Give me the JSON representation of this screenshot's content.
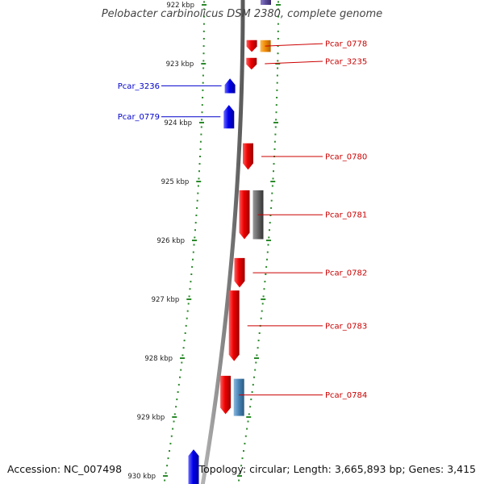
{
  "title": "Pelobacter carbinolicus DSM 2380, complete genome",
  "footer": {
    "accession": "Accession: NC_007498",
    "topology": "Topology: circular; Length: 3,665,893 bp; Genes: 3,415"
  },
  "colors": {
    "forward": "#dd0000",
    "reverse": "#0000ee",
    "orange": "#f08800",
    "gray": "#666666",
    "steelblue": "#4682b4",
    "purple": "#5a4a9a",
    "ticks": "#2a8a2a",
    "backbone": "#808080",
    "label_forward": "#cc0000",
    "label_reverse": "#0000cc"
  },
  "ruler_ticks": [
    {
      "kbp": 922,
      "label": "922 kbp"
    },
    {
      "kbp": 923,
      "label": "923 kbp"
    },
    {
      "kbp": 924,
      "label": "924 kbp"
    },
    {
      "kbp": 925,
      "label": "925 kbp"
    },
    {
      "kbp": 926,
      "label": "926 kbp"
    },
    {
      "kbp": 927,
      "label": "927 kbp"
    },
    {
      "kbp": 928,
      "label": "928 kbp"
    },
    {
      "kbp": 929,
      "label": "929 kbp"
    },
    {
      "kbp": 930,
      "label": "930 kbp"
    }
  ],
  "genes": [
    {
      "name": "Pcar_0778",
      "strand": "+",
      "start_kbp": 922.6,
      "end_kbp": 922.8,
      "color": "forward",
      "labeled": true
    },
    {
      "name": "Pcar_3235",
      "strand": "+",
      "start_kbp": 922.9,
      "end_kbp": 923.1,
      "color": "forward",
      "labeled": true
    },
    {
      "name": "Pcar_3236",
      "strand": "-",
      "start_kbp": 923.25,
      "end_kbp": 923.5,
      "color": "reverse",
      "labeled": true
    },
    {
      "name": "Pcar_0779",
      "strand": "-",
      "start_kbp": 923.7,
      "end_kbp": 924.1,
      "color": "reverse",
      "labeled": true
    },
    {
      "name": "Pcar_0780",
      "strand": "+",
      "start_kbp": 924.35,
      "end_kbp": 924.8,
      "color": "forward",
      "labeled": true
    },
    {
      "name": "Pcar_0781",
      "strand": "+",
      "start_kbp": 925.15,
      "end_kbp": 925.98,
      "color": "forward",
      "labeled": true
    },
    {
      "name": "Pcar_0782",
      "strand": "+",
      "start_kbp": 926.3,
      "end_kbp": 926.8,
      "color": "forward",
      "labeled": true
    },
    {
      "name": "Pcar_0783",
      "strand": "+",
      "start_kbp": 926.85,
      "end_kbp": 928.05,
      "color": "forward",
      "labeled": true
    },
    {
      "name": "Pcar_0784",
      "strand": "+",
      "start_kbp": 928.3,
      "end_kbp": 928.95,
      "color": "forward",
      "labeled": true
    },
    {
      "name": "",
      "strand": "-",
      "start_kbp": 929.55,
      "end_kbp": 930.2,
      "color": "reverse",
      "labeled": false
    }
  ],
  "features": [
    {
      "type": "orange",
      "start_kbp": 922.6,
      "end_kbp": 922.8
    },
    {
      "type": "gray",
      "start_kbp": 925.15,
      "end_kbp": 925.98
    },
    {
      "type": "steelblue",
      "start_kbp": 928.35,
      "end_kbp": 928.98
    },
    {
      "type": "purple",
      "start_kbp": 921.8,
      "end_kbp": 922.0
    }
  ]
}
